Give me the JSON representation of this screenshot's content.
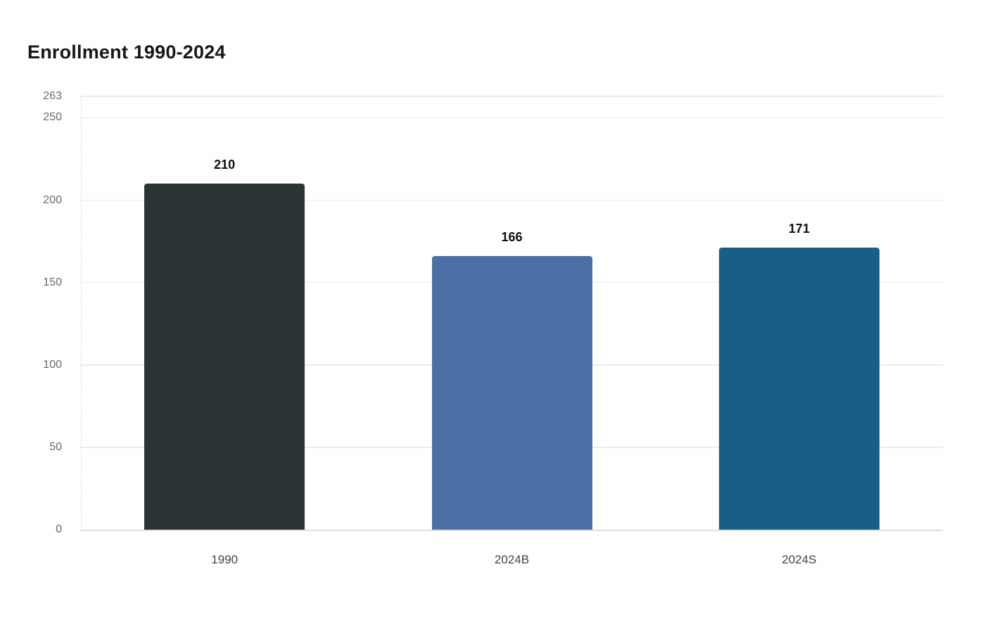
{
  "chart_data": {
    "type": "bar",
    "title": "Enrollment 1990-2024",
    "categories": [
      "1990",
      "2024B",
      "2024S"
    ],
    "values": [
      210,
      166,
      171
    ],
    "data_labels": [
      "210",
      "166",
      "171"
    ],
    "bar_colors": [
      "#2b3335",
      "#4b70a6",
      "#175f85"
    ],
    "yticks": [
      0,
      50,
      100,
      150,
      200,
      250,
      263
    ],
    "ylim": [
      0,
      263
    ],
    "xlabel": "",
    "ylabel": "",
    "grid": "horizontal",
    "legend_position": "none",
    "colors": {
      "background": "#ffffff",
      "title": "#14181b",
      "ytick_label": "#606a74",
      "xtick_label": "#3b454f",
      "data_label": "#0c0f12",
      "gridline": "#ececee",
      "baseline": "#dde0e3",
      "yaxis_line": "#ccd2d8"
    }
  }
}
